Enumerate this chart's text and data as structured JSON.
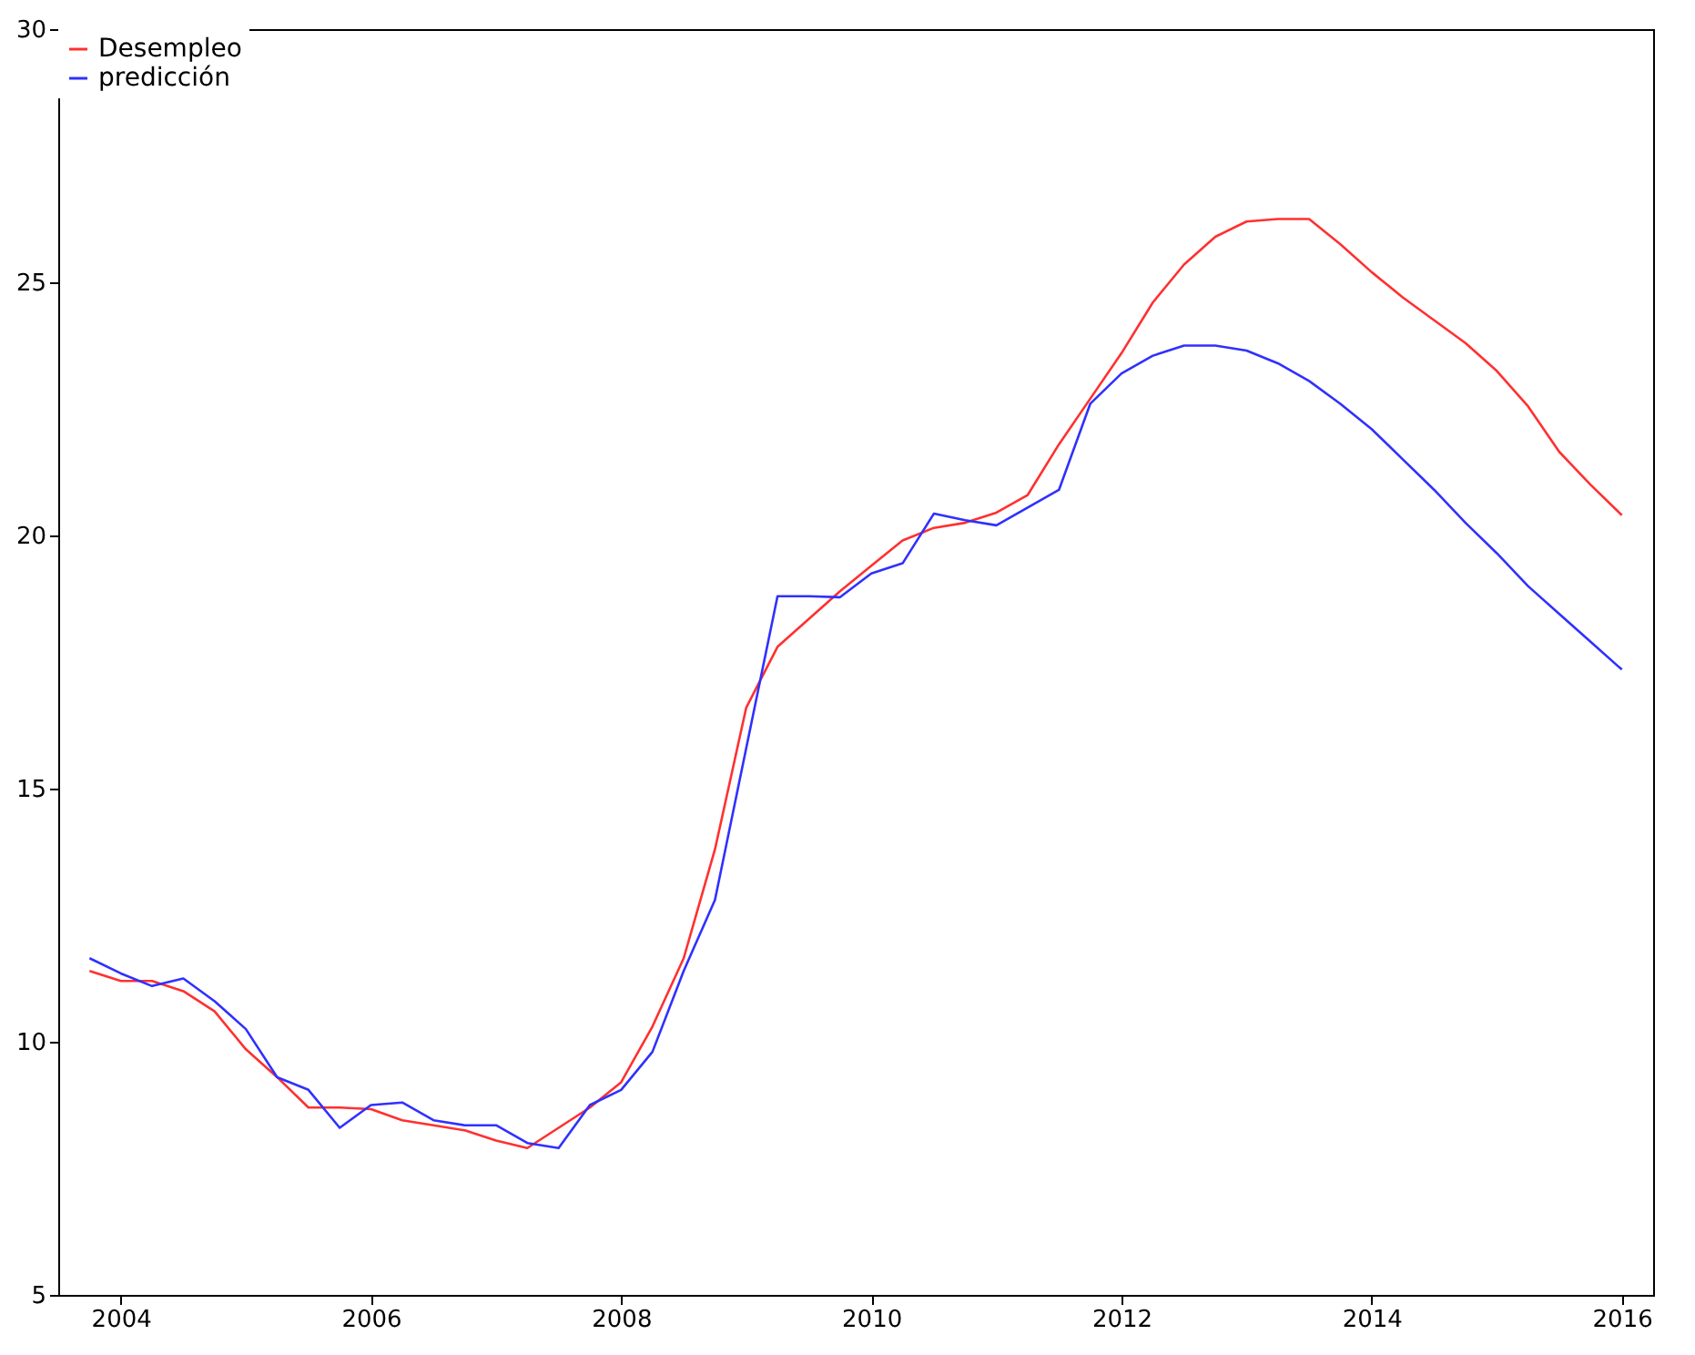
{
  "chart_data": {
    "type": "line",
    "x": [
      2003.75,
      2004,
      2004.25,
      2004.5,
      2004.75,
      2005,
      2005.25,
      2005.5,
      2005.75,
      2006,
      2006.25,
      2006.5,
      2006.75,
      2007,
      2007.25,
      2007.5,
      2007.75,
      2008,
      2008.25,
      2008.5,
      2008.75,
      2009,
      2009.25,
      2009.5,
      2009.75,
      2010,
      2010.25,
      2010.5,
      2010.75,
      2011,
      2011.25,
      2011.5,
      2011.75,
      2012,
      2012.25,
      2012.5,
      2012.75,
      2013,
      2013.25,
      2013.5,
      2013.75,
      2014,
      2014.25,
      2014.5,
      2014.75,
      2015,
      2015.25,
      2015.5,
      2015.75,
      2016
    ],
    "series": [
      {
        "name": "Desempleo",
        "color": "#ff3030",
        "values": [
          11.4,
          11.2,
          11.2,
          11.0,
          10.6,
          9.85,
          9.3,
          8.7,
          8.7,
          8.67,
          8.45,
          8.35,
          8.25,
          8.05,
          7.9,
          8.3,
          8.7,
          9.2,
          10.3,
          11.65,
          13.8,
          16.6,
          17.8,
          18.35,
          18.9,
          19.4,
          19.9,
          20.15,
          20.25,
          20.45,
          20.8,
          21.8,
          22.7,
          23.6,
          24.6,
          25.35,
          25.9,
          26.2,
          26.25,
          26.25,
          25.75,
          25.2,
          24.7,
          24.25,
          23.8,
          23.25,
          22.55,
          21.65,
          21.0,
          20.4
        ]
      },
      {
        "name": "predicción",
        "color": "#3030ff",
        "values": [
          11.65,
          11.35,
          11.1,
          11.25,
          10.8,
          10.25,
          9.3,
          9.05,
          8.3,
          8.75,
          8.8,
          8.45,
          8.35,
          8.35,
          8.0,
          7.9,
          8.75,
          9.05,
          9.8,
          11.4,
          12.8,
          15.8,
          18.8,
          18.8,
          18.78,
          19.25,
          19.45,
          20.43,
          20.3,
          20.2,
          20.55,
          20.9,
          22.6,
          23.2,
          23.55,
          23.75,
          23.75,
          23.65,
          23.4,
          23.05,
          22.6,
          22.1,
          21.5,
          20.9,
          20.25,
          19.65,
          19.0,
          18.45,
          17.9,
          17.35
        ]
      }
    ],
    "xlim": [
      2003.5,
      2016.25
    ],
    "xticks": [
      2004,
      2006,
      2008,
      2010,
      2012,
      2014,
      2016
    ],
    "ylim": [
      5,
      30
    ],
    "yticks": [
      5,
      10,
      15,
      20,
      25,
      30
    ],
    "grid": false,
    "legend": "top left",
    "line_style": "solid"
  }
}
